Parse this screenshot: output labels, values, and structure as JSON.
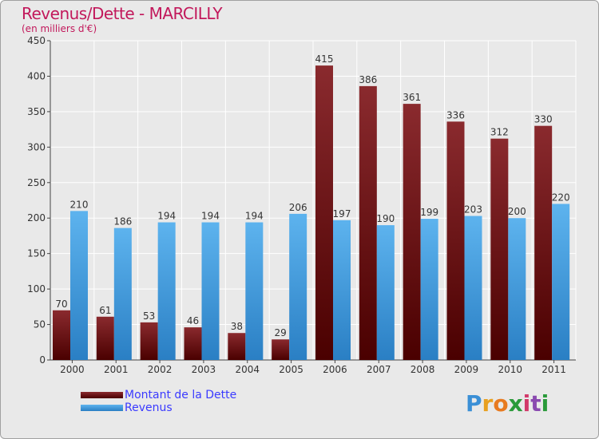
{
  "header": {
    "title": "Revenus/Dette - MARCILLY",
    "subtitle": "(en milliers d'€)"
  },
  "legend": {
    "items": [
      {
        "label": "Montant de la Dette",
        "color": "#6b0f12"
      },
      {
        "label": "Revenus",
        "color": "#3d9be0"
      }
    ]
  },
  "logo": {
    "letters": [
      "P",
      "r",
      "o",
      "x",
      "i",
      "t",
      "i"
    ],
    "colors": [
      "#3a8fd6",
      "#e8a020",
      "#e87a20",
      "#2a9a3a",
      "#d23a6a",
      "#8a4ab0",
      "#2a9a3a"
    ]
  },
  "chart_data": {
    "type": "bar",
    "title": "Revenus/Dette - MARCILLY",
    "subtitle": "(en milliers d'€)",
    "categories": [
      "2000",
      "2001",
      "2002",
      "2003",
      "2004",
      "2005",
      "2006",
      "2007",
      "2008",
      "2009",
      "2010",
      "2011"
    ],
    "series": [
      {
        "name": "Montant de la Dette",
        "color": "#7a1a1e",
        "values": [
          70,
          61,
          53,
          46,
          38,
          29,
          415,
          386,
          361,
          336,
          312,
          330
        ]
      },
      {
        "name": "Revenus",
        "color": "#3d9be0",
        "values": [
          210,
          186,
          194,
          194,
          194,
          206,
          197,
          190,
          199,
          203,
          200,
          220
        ]
      }
    ],
    "ylim": [
      0,
      450
    ],
    "yticks": [
      0,
      50,
      100,
      150,
      200,
      250,
      300,
      350,
      400,
      450
    ],
    "grid": true,
    "legend_position": "bottom-left"
  }
}
